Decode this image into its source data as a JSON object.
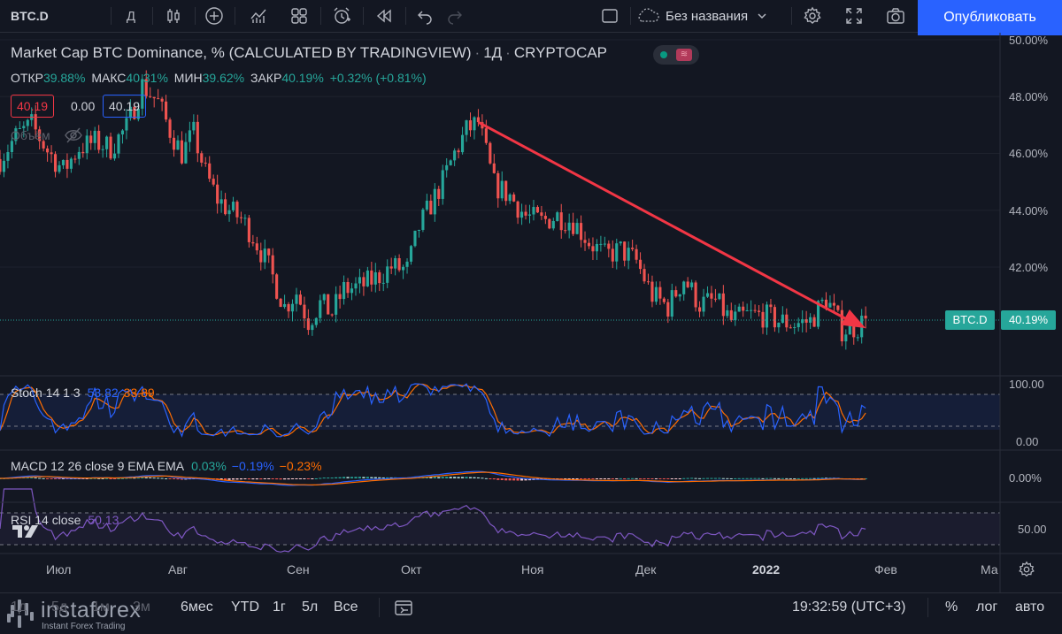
{
  "toolbar": {
    "symbol": "BTC.D",
    "interval": "Д",
    "layout_name": "Без названия",
    "publish_label": "Опубликовать"
  },
  "legend": {
    "title": "Market Cap BTC Dominance, % (CALCULATED BY TRADINGVIEW)",
    "interval": "1Д",
    "exchange": "CRYPTOCAP",
    "open_label": "ОТКР",
    "open_value": "39.88%",
    "high_label": "МАКС",
    "high_value": "40.31%",
    "low_label": "МИН",
    "low_value": "39.62%",
    "close_label": "ЗАКР",
    "close_value": "40.19%",
    "change": "+0.32% (+0.81%)",
    "sell_price": "40.19",
    "spread": "0.00",
    "buy_price": "40.19",
    "volume_label": "Объём"
  },
  "indicators": {
    "stoch": {
      "name": "Stoch 14 1 3",
      "k": "53.82",
      "d": "33.89"
    },
    "macd": {
      "name": "MACD 12 26 close 9 EMA EMA",
      "hist": "0.03%",
      "macd": "−0.19%",
      "signal": "−0.23%"
    },
    "rsi": {
      "name": "RSI 14 close",
      "value": "50.13"
    }
  },
  "price_axis": [
    "50.00%",
    "48.00%",
    "46.00%",
    "44.00%",
    "42.00%"
  ],
  "current": {
    "symbol_label": "BTC.D",
    "price_label": "40.19%"
  },
  "stoch_axis": [
    "100.00",
    "0.00"
  ],
  "macd_axis": [
    "0.00%"
  ],
  "rsi_axis": [
    "50.00"
  ],
  "time_axis": [
    "Июл",
    "Авг",
    "Сен",
    "Окт",
    "Ноя",
    "Дек",
    "2022",
    "Фев",
    "Ма"
  ],
  "bottom": {
    "ranges": [
      "1д",
      "5д",
      "1м",
      "3м",
      "6мес",
      "YTD",
      "1г",
      "5л",
      "Все"
    ],
    "clock": "19:32:59 (UTC+3)",
    "percent": "%",
    "log": "лог",
    "auto": "авто"
  },
  "watermark": {
    "name": "instaforex",
    "sub": "Instant Forex Trading"
  },
  "colors": {
    "up": "#26a69a",
    "down": "#ef5350",
    "trend": "#f23645",
    "stoch_k": "#2962ff",
    "stoch_d": "#ff6d00",
    "rsi": "#7e57c2",
    "accent": "#2962ff"
  },
  "chart_data": {
    "type": "candlestick",
    "title": "Market Cap BTC Dominance, % (CALCULATED BY TRADINGVIEW)",
    "ylim": [
      38.6,
      50.0
    ],
    "y_ticks": [
      50,
      48,
      46,
      44,
      42
    ],
    "x_start": "2021-06-21",
    "x_end": "2022-03-01",
    "trend_line": {
      "from": {
        "date": "2021-10-20",
        "value": 47.1
      },
      "to": {
        "date": "2022-01-26",
        "value": 39.85
      }
    },
    "closes": {
      "dates": [
        "2021-06-21",
        "2021-06-25",
        "2021-06-29",
        "2021-07-03",
        "2021-07-07",
        "2021-07-11",
        "2021-07-15",
        "2021-07-19",
        "2021-07-23",
        "2021-07-27",
        "2021-07-31",
        "2021-08-03",
        "2021-08-06",
        "2021-08-09",
        "2021-08-12",
        "2021-08-15",
        "2021-08-18",
        "2021-08-21",
        "2021-08-24",
        "2021-08-28",
        "2021-09-01",
        "2021-09-04",
        "2021-09-07",
        "2021-09-10",
        "2021-09-13",
        "2021-09-16",
        "2021-09-20",
        "2021-09-24",
        "2021-09-28",
        "2021-10-02",
        "2021-10-05",
        "2021-10-08",
        "2021-10-11",
        "2021-10-14",
        "2021-10-17",
        "2021-10-20",
        "2021-10-24",
        "2021-10-28",
        "2021-11-01",
        "2021-11-05",
        "2021-11-09",
        "2021-11-13",
        "2021-11-17",
        "2021-11-21",
        "2021-11-25",
        "2021-11-29",
        "2021-12-03",
        "2021-12-07",
        "2021-12-11",
        "2021-12-15",
        "2021-12-19",
        "2021-12-23",
        "2021-12-27",
        "2021-12-31",
        "2022-01-04",
        "2022-01-08",
        "2022-01-12",
        "2022-01-16",
        "2022-01-20",
        "2022-01-24",
        "2022-01-26"
      ],
      "values": [
        45.8,
        46.6,
        47.0,
        46.1,
        45.4,
        46.2,
        46.4,
        46.2,
        46.9,
        48.4,
        47.8,
        46.8,
        46.0,
        46.7,
        45.3,
        44.4,
        44.0,
        43.7,
        43.1,
        42.0,
        40.6,
        41.1,
        40.1,
        40.7,
        40.4,
        41.2,
        41.3,
        41.6,
        42.0,
        41.9,
        43.4,
        44.2,
        45.0,
        46.0,
        46.8,
        47.1,
        44.9,
        44.5,
        43.8,
        43.6,
        43.8,
        43.6,
        42.9,
        42.4,
        42.6,
        42.2,
        41.0,
        40.6,
        41.6,
        40.7,
        40.8,
        40.1,
        40.3,
        40.3,
        40.1,
        40.0,
        40.1,
        40.9,
        39.8,
        39.9,
        40.19
      ]
    },
    "current_value": 40.19
  }
}
